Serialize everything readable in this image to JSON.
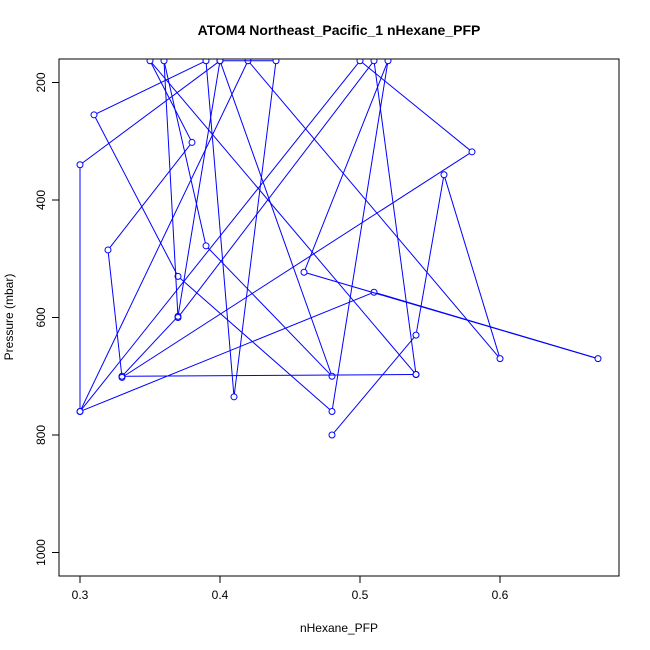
{
  "chart_data": {
    "type": "line",
    "title": "ATOM4 Northeast_Pacific_1 nHexane_PFP",
    "xlabel": "nHexane_PFP",
    "ylabel": "Pressure (mbar)",
    "xlim": [
      0.285,
      0.685
    ],
    "ylim": [
      1040,
      160
    ],
    "y_reversed": true,
    "x_ticks": [
      0.3,
      0.4,
      0.5,
      0.6
    ],
    "x_tick_labels": [
      "0.3",
      "0.4",
      "0.5",
      "0.6"
    ],
    "y_ticks": [
      200,
      400,
      600,
      800,
      1000
    ],
    "y_tick_labels": [
      "200",
      "400",
      "600",
      "800",
      "1000"
    ],
    "grid": false,
    "legend": "none",
    "series": [
      {
        "color": "#0000ff",
        "marker": "open-circle",
        "x": [
          0.48,
          0.54,
          0.56,
          0.6,
          0.42,
          0.3,
          0.51,
          0.67,
          0.46,
          0.52,
          0.48,
          0.37,
          0.31,
          0.39,
          0.41,
          0.44,
          0.4,
          0.3,
          0.3,
          0.5,
          0.58,
          0.33,
          0.32,
          0.38,
          0.35,
          0.54,
          0.33,
          0.37,
          0.4,
          0.48,
          0.39,
          0.36,
          0.37,
          0.51,
          0.54
        ],
        "y": [
          800,
          630,
          357,
          670,
          163,
          760,
          557,
          670,
          523,
          163,
          760,
          530,
          255,
          163,
          735,
          163,
          163,
          340,
          760,
          163,
          318,
          702,
          485,
          302,
          163,
          697,
          700,
          598,
          163,
          700,
          478,
          163,
          600,
          163,
          697
        ]
      }
    ]
  }
}
